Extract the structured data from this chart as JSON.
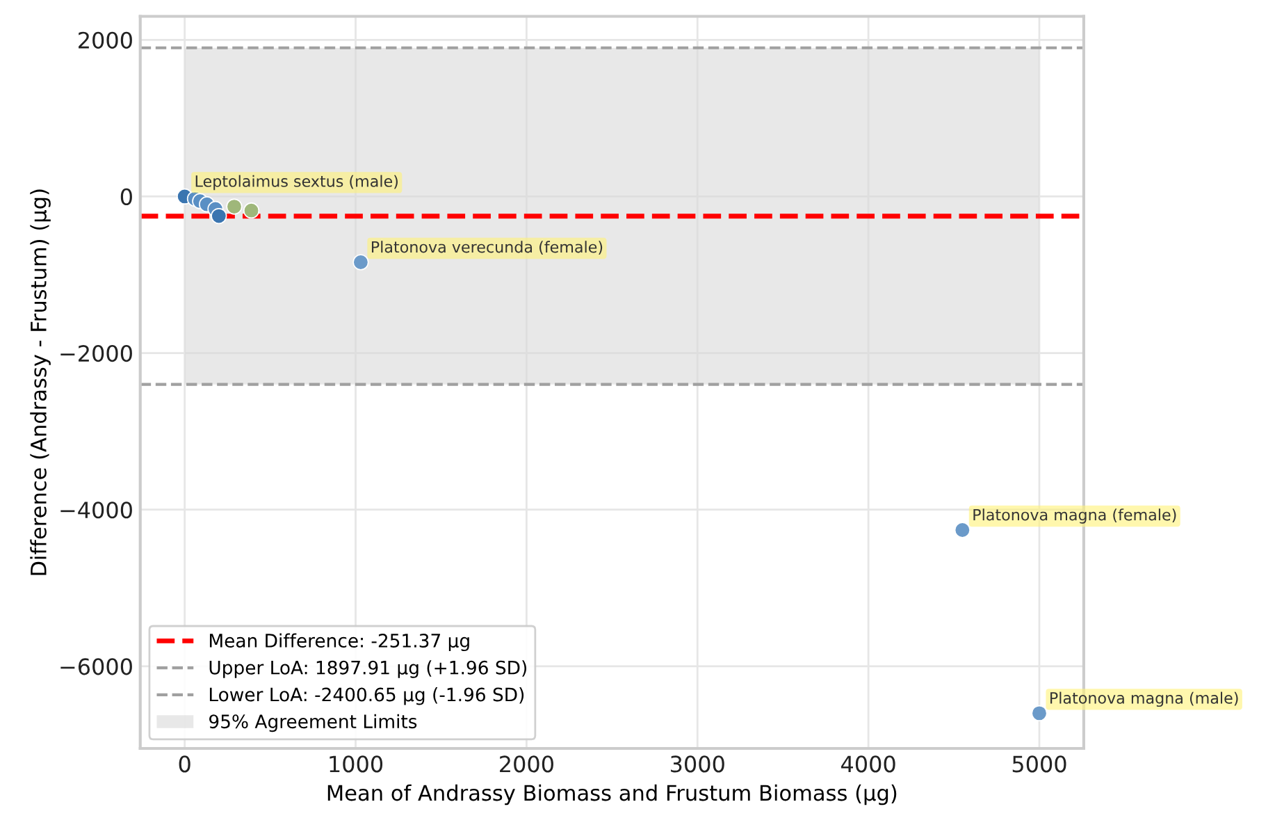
{
  "chart_data": {
    "type": "scatter",
    "xlabel": "Mean of Andrassy Biomass and Frustum Biomass (µg)",
    "ylabel": "Difference (Andrassy - Frustum) (µg)",
    "x": [
      0,
      60,
      90,
      130,
      180,
      200,
      290,
      390,
      1030,
      4550,
      5000
    ],
    "values": [
      0,
      -30,
      -60,
      -100,
      -160,
      -250,
      -130,
      -180,
      -840,
      -4260,
      -6600
    ],
    "colors": [
      "#3a75b0",
      "#5a8fc4",
      "#5a8fc4",
      "#5a8fc4",
      "#5a8fc4",
      "#3a75b0",
      "#9fb77a",
      "#9fb77a",
      "#6b9ac9",
      "#6b9ac9",
      "#6b9ac9"
    ],
    "marker": "circle",
    "xlim": [
      -260,
      5260
    ],
    "ylim": [
      -7050,
      2300
    ],
    "xticks": [
      0,
      1000,
      2000,
      3000,
      4000,
      5000
    ],
    "yticks": [
      -6000,
      -4000,
      -2000,
      0,
      2000
    ],
    "grid": true,
    "legend": "bottom left",
    "ref_lines": [
      {
        "axis": "y",
        "value": -251.37,
        "label": "Mean Difference: -251.37 µg",
        "color": "#ff0000",
        "line_style": "dashed"
      },
      {
        "axis": "y",
        "value": 1897.91,
        "label": "Upper LoA: 1897.91 µg (+1.96 SD)",
        "color": "#a0a0a0",
        "line_style": "dashed"
      },
      {
        "axis": "y",
        "value": -2400.65,
        "label": "Lower LoA: -2400.65 µg (-1.96 SD)",
        "color": "#a0a0a0",
        "line_style": "dashed"
      }
    ],
    "bands": [
      {
        "axis": "y",
        "from": -2400.65,
        "to": 1897.91,
        "label": "95% Agreement Limits",
        "color": "#d9d9d9"
      }
    ],
    "annotations": [
      {
        "text": "Leptolaimus sextus (male)",
        "x": 0,
        "y": 0
      },
      {
        "text": "Platonova verecunda (female)",
        "x": 1030,
        "y": -840
      },
      {
        "text": "Platonova magna (female)",
        "x": 4550,
        "y": -4260
      },
      {
        "text": "Platonova magna (male)",
        "x": 5000,
        "y": -6600
      }
    ]
  }
}
